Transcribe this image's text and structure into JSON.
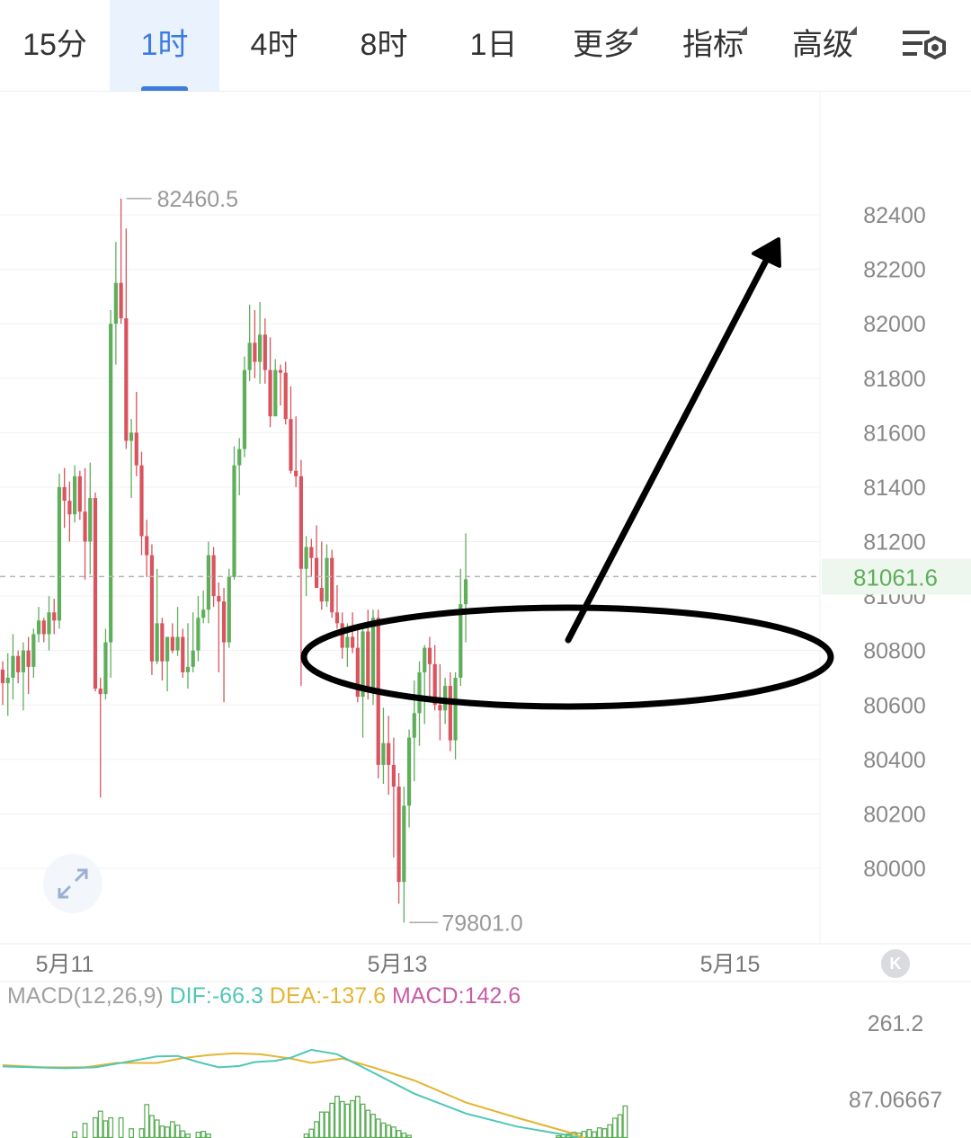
{
  "tabs": [
    {
      "label": "15分",
      "active": false,
      "dropdown": false
    },
    {
      "label": "1时",
      "active": true,
      "dropdown": false
    },
    {
      "label": "4时",
      "active": false,
      "dropdown": false
    },
    {
      "label": "8时",
      "active": false,
      "dropdown": false
    },
    {
      "label": "1日",
      "active": false,
      "dropdown": false
    },
    {
      "label": "更多",
      "active": false,
      "dropdown": true
    },
    {
      "label": "指标",
      "active": false,
      "dropdown": true
    },
    {
      "label": "高级",
      "active": false,
      "dropdown": true
    }
  ],
  "settings_icon": "chart-settings-icon",
  "expand_icon": "expand-icon",
  "scroll_icon": "scroll-to-latest-icon",
  "scroll_glyph": "K",
  "colors": {
    "up": "#5fae5b",
    "down": "#d9545e",
    "active_tab": "#3e7be0",
    "current_price": "#5fae5b",
    "dif": "#4fc7b5",
    "dea": "#e6b431",
    "macd": "#c85ca5",
    "annotation": "#000000"
  },
  "chart_data": {
    "type": "candlestick",
    "interval": "1时",
    "y_ticks": [
      82400,
      82200,
      82000,
      81800,
      81600,
      81400,
      81200,
      81000,
      80800,
      80600,
      80400,
      80200,
      80000
    ],
    "x_ticks": [
      "5月11",
      "5月13",
      "5月15"
    ],
    "current_price": "81061.6",
    "high_label": "82460.5",
    "low_label": "79801.0",
    "candles": [
      [
        80730,
        80760,
        80600,
        80680
      ],
      [
        80680,
        80790,
        80560,
        80700
      ],
      [
        80700,
        80860,
        80620,
        80780
      ],
      [
        80780,
        80800,
        80680,
        80720
      ],
      [
        80720,
        80830,
        80580,
        80800
      ],
      [
        80800,
        80850,
        80640,
        80740
      ],
      [
        80740,
        80880,
        80700,
        80860
      ],
      [
        80860,
        80960,
        80830,
        80910
      ],
      [
        80910,
        80920,
        80830,
        80860
      ],
      [
        80860,
        81000,
        80800,
        80940
      ],
      [
        80940,
        80990,
        80860,
        80910
      ],
      [
        80910,
        81450,
        80880,
        81400
      ],
      [
        81400,
        81470,
        81250,
        81350
      ],
      [
        81350,
        81420,
        81200,
        81300
      ],
      [
        81300,
        81480,
        81270,
        81440
      ],
      [
        81440,
        81460,
        81280,
        81310
      ],
      [
        81310,
        81470,
        81060,
        81200
      ],
      [
        81200,
        81490,
        81080,
        81360
      ],
      [
        81360,
        81380,
        80650,
        80660
      ],
      [
        80660,
        80700,
        80260,
        80640
      ],
      [
        80640,
        80880,
        80620,
        80830
      ],
      [
        80830,
        82050,
        80700,
        82000
      ],
      [
        82000,
        82300,
        81850,
        82150
      ],
      [
        82150,
        82460,
        82000,
        82020
      ],
      [
        82020,
        82350,
        81540,
        81570
      ],
      [
        81570,
        81650,
        81360,
        81600
      ],
      [
        81600,
        81750,
        81440,
        81480
      ],
      [
        81480,
        81530,
        81150,
        81220
      ],
      [
        81220,
        81280,
        81070,
        81150
      ],
      [
        81150,
        81190,
        80710,
        80760
      ],
      [
        80760,
        81100,
        80750,
        80900
      ],
      [
        80900,
        80920,
        80690,
        80760
      ],
      [
        80760,
        80850,
        80650,
        80850
      ],
      [
        80850,
        80900,
        80790,
        80800
      ],
      [
        80800,
        80960,
        80780,
        80850
      ],
      [
        80850,
        80880,
        80700,
        80720
      ],
      [
        80720,
        80900,
        80660,
        80740
      ],
      [
        80740,
        80940,
        80720,
        80800
      ],
      [
        80800,
        81000,
        80760,
        80920
      ],
      [
        80920,
        81020,
        80900,
        80950
      ],
      [
        80950,
        81200,
        80900,
        81150
      ],
      [
        81150,
        81180,
        80960,
        81000
      ],
      [
        81000,
        81050,
        80720,
        80980
      ],
      [
        80980,
        81030,
        80610,
        80830
      ],
      [
        80830,
        81100,
        80810,
        81070
      ],
      [
        81070,
        81550,
        81060,
        81480
      ],
      [
        81480,
        81580,
        81370,
        81540
      ],
      [
        81540,
        81880,
        81510,
        81830
      ],
      [
        81830,
        82070,
        81790,
        81930
      ],
      [
        81930,
        82050,
        81800,
        81860
      ],
      [
        81860,
        82080,
        81780,
        81960
      ],
      [
        81960,
        82020,
        81780,
        81830
      ],
      [
        81830,
        81950,
        81620,
        81660
      ],
      [
        81660,
        81870,
        81660,
        81830
      ],
      [
        81830,
        81850,
        81700,
        81820
      ],
      [
        81820,
        81860,
        81630,
        81650
      ],
      [
        81650,
        81770,
        81450,
        81460
      ],
      [
        81460,
        81660,
        81400,
        81440
      ],
      [
        81440,
        81500,
        80670,
        81100
      ],
      [
        81100,
        81220,
        81000,
        81180
      ],
      [
        81180,
        81210,
        81070,
        81140
      ],
      [
        81140,
        81260,
        81030,
        81030
      ],
      [
        81030,
        81200,
        80950,
        80980
      ],
      [
        80980,
        81190,
        80960,
        81140
      ],
      [
        81140,
        81170,
        80920,
        80940
      ],
      [
        80940,
        81040,
        80880,
        80900
      ],
      [
        80900,
        80940,
        80770,
        80810
      ],
      [
        80810,
        80900,
        80740,
        80850
      ],
      [
        80850,
        80940,
        80790,
        80810
      ],
      [
        80810,
        80890,
        80610,
        80630
      ],
      [
        80630,
        80900,
        80480,
        80870
      ],
      [
        80870,
        80950,
        80620,
        80660
      ],
      [
        80660,
        80950,
        80600,
        80920
      ],
      [
        80920,
        80950,
        80330,
        80380
      ],
      [
        80380,
        80590,
        80310,
        80460
      ],
      [
        80460,
        80560,
        80270,
        80380
      ],
      [
        80380,
        80480,
        80040,
        80300
      ],
      [
        80300,
        80350,
        79870,
        79950
      ],
      [
        79950,
        80300,
        79801,
        80230
      ],
      [
        80230,
        80510,
        80150,
        80480
      ],
      [
        80480,
        80690,
        80320,
        80570
      ],
      [
        80570,
        80760,
        80450,
        80720
      ],
      [
        80720,
        80820,
        80530,
        80810
      ],
      [
        80810,
        80850,
        80620,
        80750
      ],
      [
        80750,
        80820,
        80580,
        80600
      ],
      [
        80600,
        80750,
        80470,
        80580
      ],
      [
        80580,
        80700,
        80530,
        80670
      ],
      [
        80670,
        80720,
        80430,
        80470
      ],
      [
        80470,
        80720,
        80400,
        80700
      ],
      [
        80700,
        81100,
        80670,
        80970
      ],
      [
        80970,
        81230,
        80830,
        81061.6
      ]
    ],
    "macd": {
      "params": "MACD(12,26,9)",
      "label": "MACD",
      "dif_label": "DIF",
      "dea_label": "DEA",
      "dif": "-66.3",
      "dea": "-137.6",
      "macd": "142.6",
      "y_ticks": [
        "261.2",
        "87.06667"
      ],
      "y_range": [
        -10,
        261.2
      ],
      "dif_series": [
        [
          0,
          162
        ],
        [
          6,
          160
        ],
        [
          12,
          158
        ],
        [
          18,
          160
        ],
        [
          24,
          172
        ],
        [
          30,
          185
        ],
        [
          34,
          186
        ],
        [
          38,
          172
        ],
        [
          42,
          160
        ],
        [
          46,
          163
        ],
        [
          49,
          172
        ],
        [
          53,
          175
        ],
        [
          56,
          182
        ],
        [
          60,
          200
        ],
        [
          65,
          190
        ],
        [
          70,
          160
        ],
        [
          80,
          100
        ],
        [
          90,
          55
        ],
        [
          100,
          25
        ],
        [
          110,
          5
        ],
        [
          115,
          -10
        ]
      ],
      "dea_series": [
        [
          0,
          165
        ],
        [
          8,
          160
        ],
        [
          16,
          160
        ],
        [
          22,
          170
        ],
        [
          30,
          170
        ],
        [
          35,
          181
        ],
        [
          40,
          188
        ],
        [
          45,
          192
        ],
        [
          50,
          190
        ],
        [
          56,
          180
        ],
        [
          60,
          170
        ],
        [
          66,
          180
        ],
        [
          72,
          160
        ],
        [
          80,
          130
        ],
        [
          90,
          80
        ],
        [
          100,
          45
        ],
        [
          110,
          12
        ],
        [
          115,
          -10
        ]
      ],
      "hist": [
        [
          14,
          13
        ],
        [
          16,
          32
        ],
        [
          18,
          45
        ],
        [
          19,
          60
        ],
        [
          20,
          38
        ],
        [
          21,
          45
        ],
        [
          23,
          45
        ],
        [
          25,
          20
        ],
        [
          27,
          20
        ],
        [
          28,
          75
        ],
        [
          29,
          50
        ],
        [
          30,
          40
        ],
        [
          31,
          26
        ],
        [
          32,
          24
        ],
        [
          33,
          36
        ],
        [
          34,
          28
        ],
        [
          35,
          15
        ],
        [
          36,
          8
        ],
        [
          38,
          12
        ],
        [
          39,
          14
        ],
        [
          40,
          8
        ],
        [
          59,
          8
        ],
        [
          60,
          19
        ],
        [
          61,
          36
        ],
        [
          62,
          58
        ],
        [
          63,
          58
        ],
        [
          64,
          78
        ],
        [
          65,
          94
        ],
        [
          66,
          82
        ],
        [
          67,
          76
        ],
        [
          68,
          84
        ],
        [
          69,
          94
        ],
        [
          70,
          76
        ],
        [
          71,
          62
        ],
        [
          72,
          53
        ],
        [
          73,
          42
        ],
        [
          74,
          33
        ],
        [
          75,
          28
        ],
        [
          76,
          24
        ],
        [
          77,
          16
        ],
        [
          78,
          10
        ],
        [
          79,
          5
        ],
        [
          108,
          4
        ],
        [
          109,
          7
        ],
        [
          110,
          8
        ],
        [
          111,
          12
        ],
        [
          112,
          10
        ],
        [
          113,
          14
        ],
        [
          114,
          18
        ],
        [
          115,
          13
        ],
        [
          116,
          22
        ],
        [
          117,
          20
        ],
        [
          118,
          29
        ],
        [
          119,
          44
        ],
        [
          120,
          52
        ],
        [
          121,
          72
        ]
      ]
    },
    "annotations": [
      "ellipse",
      "arrow"
    ]
  }
}
